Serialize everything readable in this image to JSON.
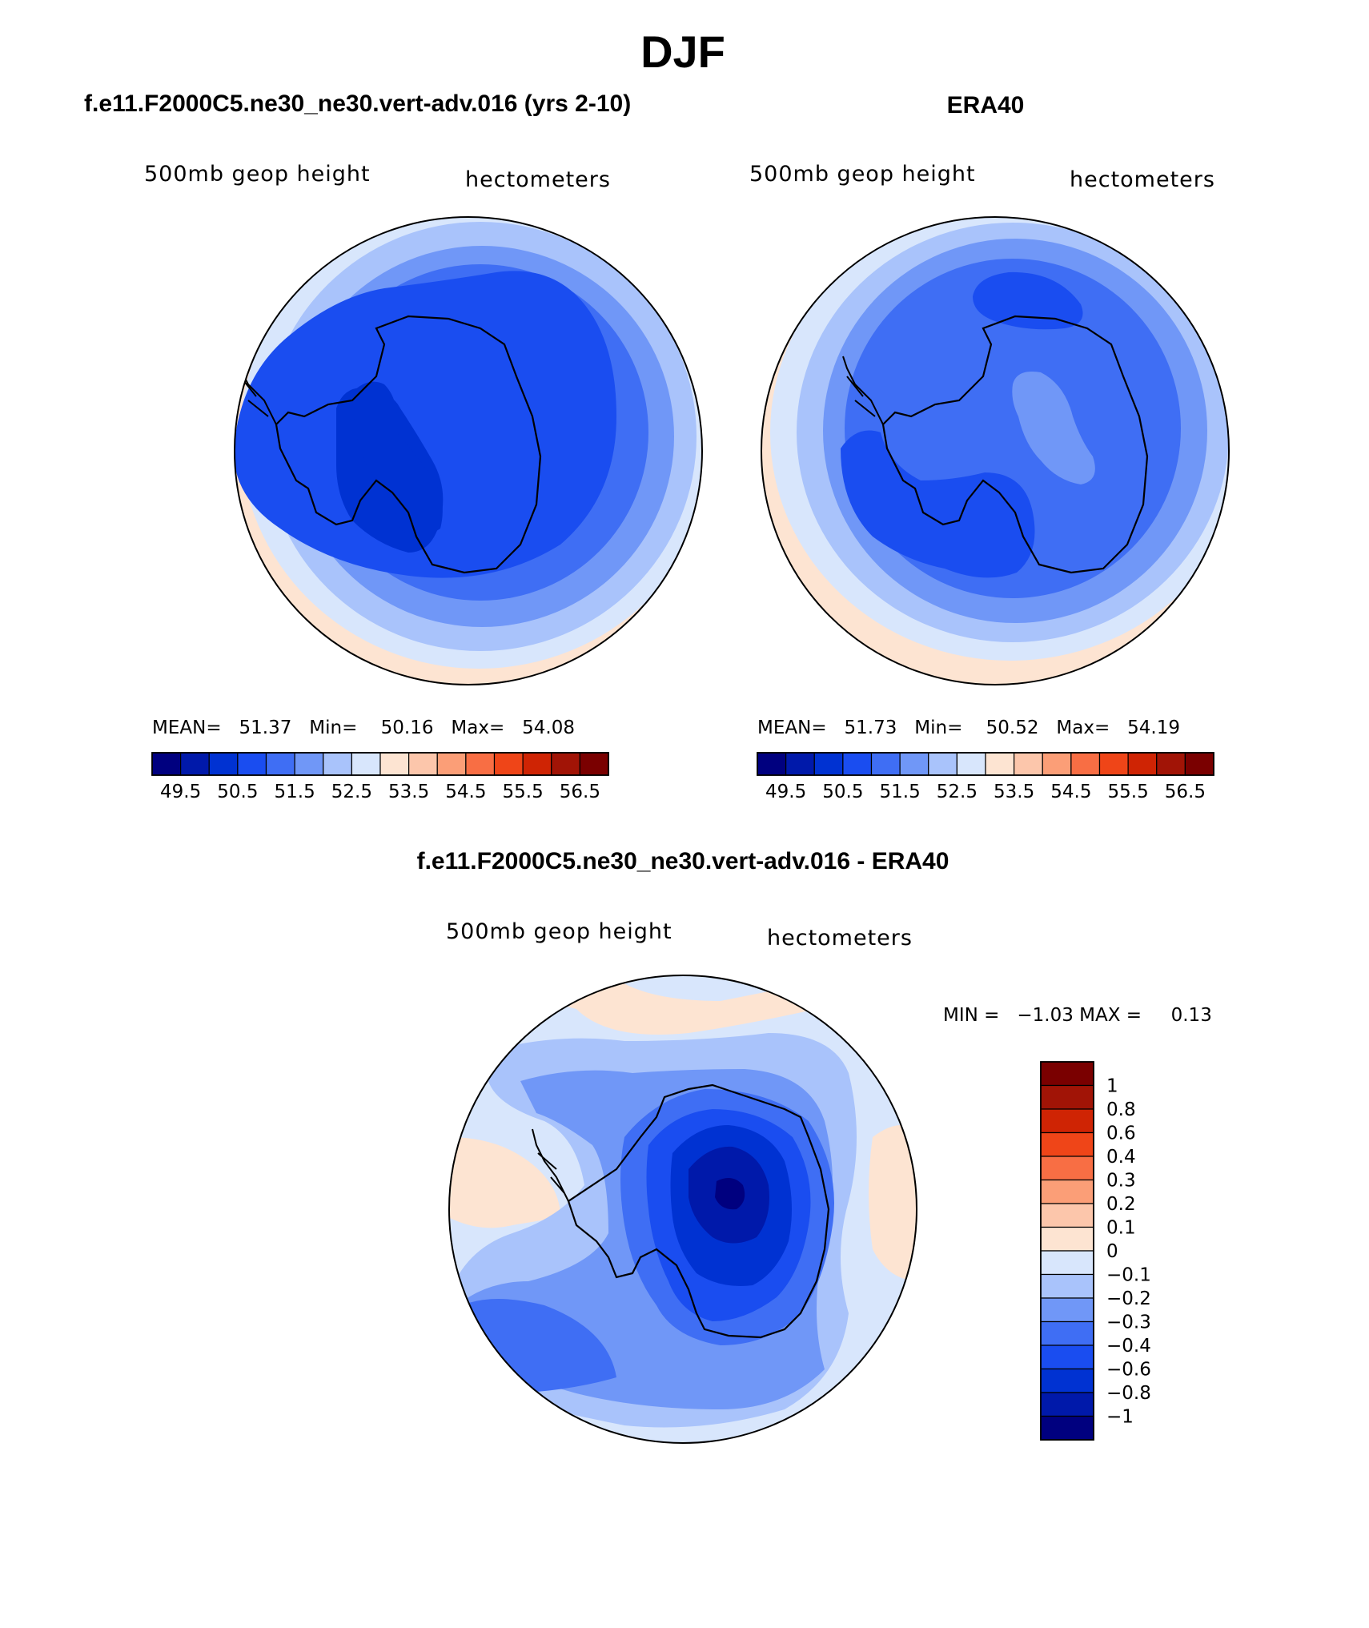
{
  "figure": {
    "title": "DJF",
    "panels": [
      {
        "id": "model",
        "title": "f.e11.F2000C5.ne30_ne30.vert-adv.016 (yrs 2-10)",
        "field_label": "500mb geop height",
        "units_label": "hectometers",
        "stats_text": "MEAN=   51.37   Min=    50.16   Max=   54.08"
      },
      {
        "id": "obs",
        "title": "ERA40",
        "field_label": "500mb geop height",
        "units_label": "hectometers",
        "stats_text": "MEAN=   51.73   Min=    50.52   Max=   54.19"
      },
      {
        "id": "diff",
        "title": "f.e11.F2000C5.ne30_ne30.vert-adv.016 - ERA40",
        "field_label": "500mb geop height",
        "units_label": "hectometers",
        "stats_text": "MIN =   −1.03 MAX =     0.13"
      }
    ]
  },
  "chart_data": [
    {
      "type": "heatmap",
      "projection": "polar-stereographic-south",
      "title": "f.e11.F2000C5.ne30_ne30.vert-adv.016 (yrs 2-10)",
      "field": "500mb geop height",
      "units": "hectometers",
      "mean": 51.37,
      "min": 50.16,
      "max": 54.08,
      "colorbar_levels": [
        49.5,
        50.0,
        50.5,
        51.0,
        51.5,
        52.0,
        52.5,
        53.0,
        53.5,
        54.0,
        54.5,
        55.0,
        55.5,
        56.0,
        56.5
      ],
      "colorbar_tick_labels": [
        "49.5",
        "50.5",
        "51.5",
        "52.5",
        "53.5",
        "54.5",
        "55.5",
        "56.5"
      ],
      "colorbar_orientation": "horizontal"
    },
    {
      "type": "heatmap",
      "projection": "polar-stereographic-south",
      "title": "ERA40",
      "field": "500mb geop height",
      "units": "hectometers",
      "mean": 51.73,
      "min": 50.52,
      "max": 54.19,
      "colorbar_levels": [
        49.5,
        50.0,
        50.5,
        51.0,
        51.5,
        52.0,
        52.5,
        53.0,
        53.5,
        54.0,
        54.5,
        55.0,
        55.5,
        56.0,
        56.5
      ],
      "colorbar_tick_labels": [
        "49.5",
        "50.5",
        "51.5",
        "52.5",
        "53.5",
        "54.5",
        "55.5",
        "56.5"
      ],
      "colorbar_orientation": "horizontal"
    },
    {
      "type": "heatmap",
      "projection": "polar-stereographic-south",
      "title": "f.e11.F2000C5.ne30_ne30.vert-adv.016 - ERA40",
      "field": "500mb geop height",
      "units": "hectometers",
      "min": -1.03,
      "max": 0.13,
      "colorbar_tick_labels": [
        "1",
        "0.8",
        "0.6",
        "0.4",
        "0.3",
        "0.2",
        "0.1",
        "0",
        "−0.1",
        "−0.2",
        "−0.3",
        "−0.4",
        "−0.6",
        "−0.8",
        "−1"
      ],
      "colorbar_orientation": "vertical"
    }
  ],
  "palette": {
    "colors": [
      "#00007f",
      "#0019aa",
      "#0032d2",
      "#1a4df0",
      "#3f6ef4",
      "#7097f7",
      "#a9c3fb",
      "#d8e6fc",
      "#fde4d2",
      "#fcc6ab",
      "#fb9e77",
      "#f86e44",
      "#ef4518",
      "#cf2404",
      "#a11406",
      "#7a0000"
    ]
  }
}
